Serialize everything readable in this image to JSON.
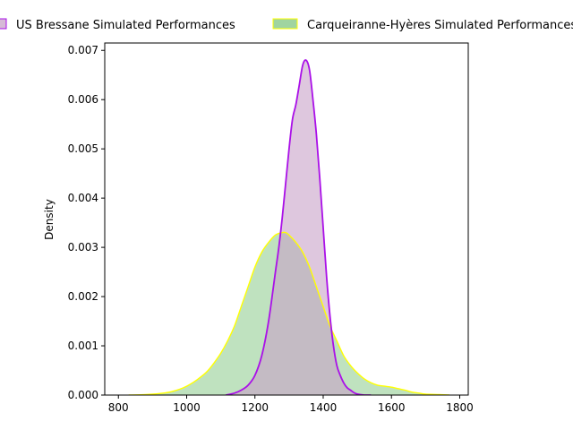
{
  "chart_data": {
    "type": "area",
    "title": "",
    "xlabel": "",
    "ylabel": "Density",
    "xlim": [
      760,
      1825
    ],
    "ylim": [
      0,
      0.00715
    ],
    "x_ticks": [
      800,
      1000,
      1200,
      1400,
      1600,
      1800
    ],
    "x_tick_labels": [
      "800",
      "1000",
      "1200",
      "1400",
      "1600",
      "1800"
    ],
    "y_ticks": [
      0,
      0.001,
      0.002,
      0.003,
      0.004,
      0.005,
      0.006,
      0.007
    ],
    "y_tick_labels": [
      "0.000",
      "0.001",
      "0.002",
      "0.003",
      "0.004",
      "0.005",
      "0.006",
      "0.007"
    ],
    "grid": false,
    "legend_placement": "top",
    "series": [
      {
        "name": "US Bressane Simulated Performances",
        "line_color": "#aa10e8",
        "fill_color": "#c8a2c8",
        "fill_opacity": 0.6,
        "x": [
          1115,
          1140,
          1160,
          1180,
          1200,
          1220,
          1240,
          1260,
          1270,
          1280,
          1290,
          1300,
          1310,
          1320,
          1330,
          1340,
          1350,
          1360,
          1370,
          1380,
          1390,
          1400,
          1410,
          1420,
          1430,
          1440,
          1450,
          1460,
          1470,
          1480,
          1490,
          1500,
          1520,
          1540
        ],
        "values": [
          0.0,
          4e-05,
          0.0001,
          0.0002,
          0.0004,
          0.0008,
          0.0015,
          0.0025,
          0.003,
          0.0036,
          0.0043,
          0.005,
          0.0056,
          0.0059,
          0.0063,
          0.0067,
          0.0068,
          0.0066,
          0.006,
          0.0053,
          0.0044,
          0.0034,
          0.0024,
          0.0016,
          0.001,
          0.0006,
          0.0004,
          0.00025,
          0.00015,
          0.0001,
          5e-05,
          2e-05,
          0.0,
          0.0
        ]
      },
      {
        "name": "Carqueiranne-Hyères Simulated Performances",
        "line_color": "#ffff00",
        "fill_color": "#2ca02c",
        "fill_opacity": 0.3,
        "x": [
          830,
          880,
          920,
          950,
          980,
          1000,
          1020,
          1040,
          1060,
          1080,
          1100,
          1120,
          1140,
          1160,
          1180,
          1200,
          1220,
          1240,
          1260,
          1280,
          1290,
          1300,
          1320,
          1340,
          1360,
          1380,
          1400,
          1420,
          1440,
          1460,
          1480,
          1500,
          1520,
          1540,
          1560,
          1580,
          1600,
          1620,
          1640,
          1660,
          1680,
          1700,
          1740,
          1770
        ],
        "values": [
          0.0,
          1e-05,
          3e-05,
          6e-05,
          0.00012,
          0.00018,
          0.00026,
          0.00036,
          0.00048,
          0.00065,
          0.00085,
          0.0011,
          0.0014,
          0.0018,
          0.0022,
          0.0026,
          0.0029,
          0.0031,
          0.00325,
          0.0033,
          0.0033,
          0.00325,
          0.0031,
          0.0029,
          0.0026,
          0.0022,
          0.0018,
          0.0014,
          0.0011,
          0.0008,
          0.0006,
          0.00045,
          0.00033,
          0.00025,
          0.0002,
          0.00018,
          0.00016,
          0.00013,
          0.0001,
          6e-05,
          4e-05,
          2e-05,
          1e-05,
          0.0
        ]
      }
    ]
  }
}
